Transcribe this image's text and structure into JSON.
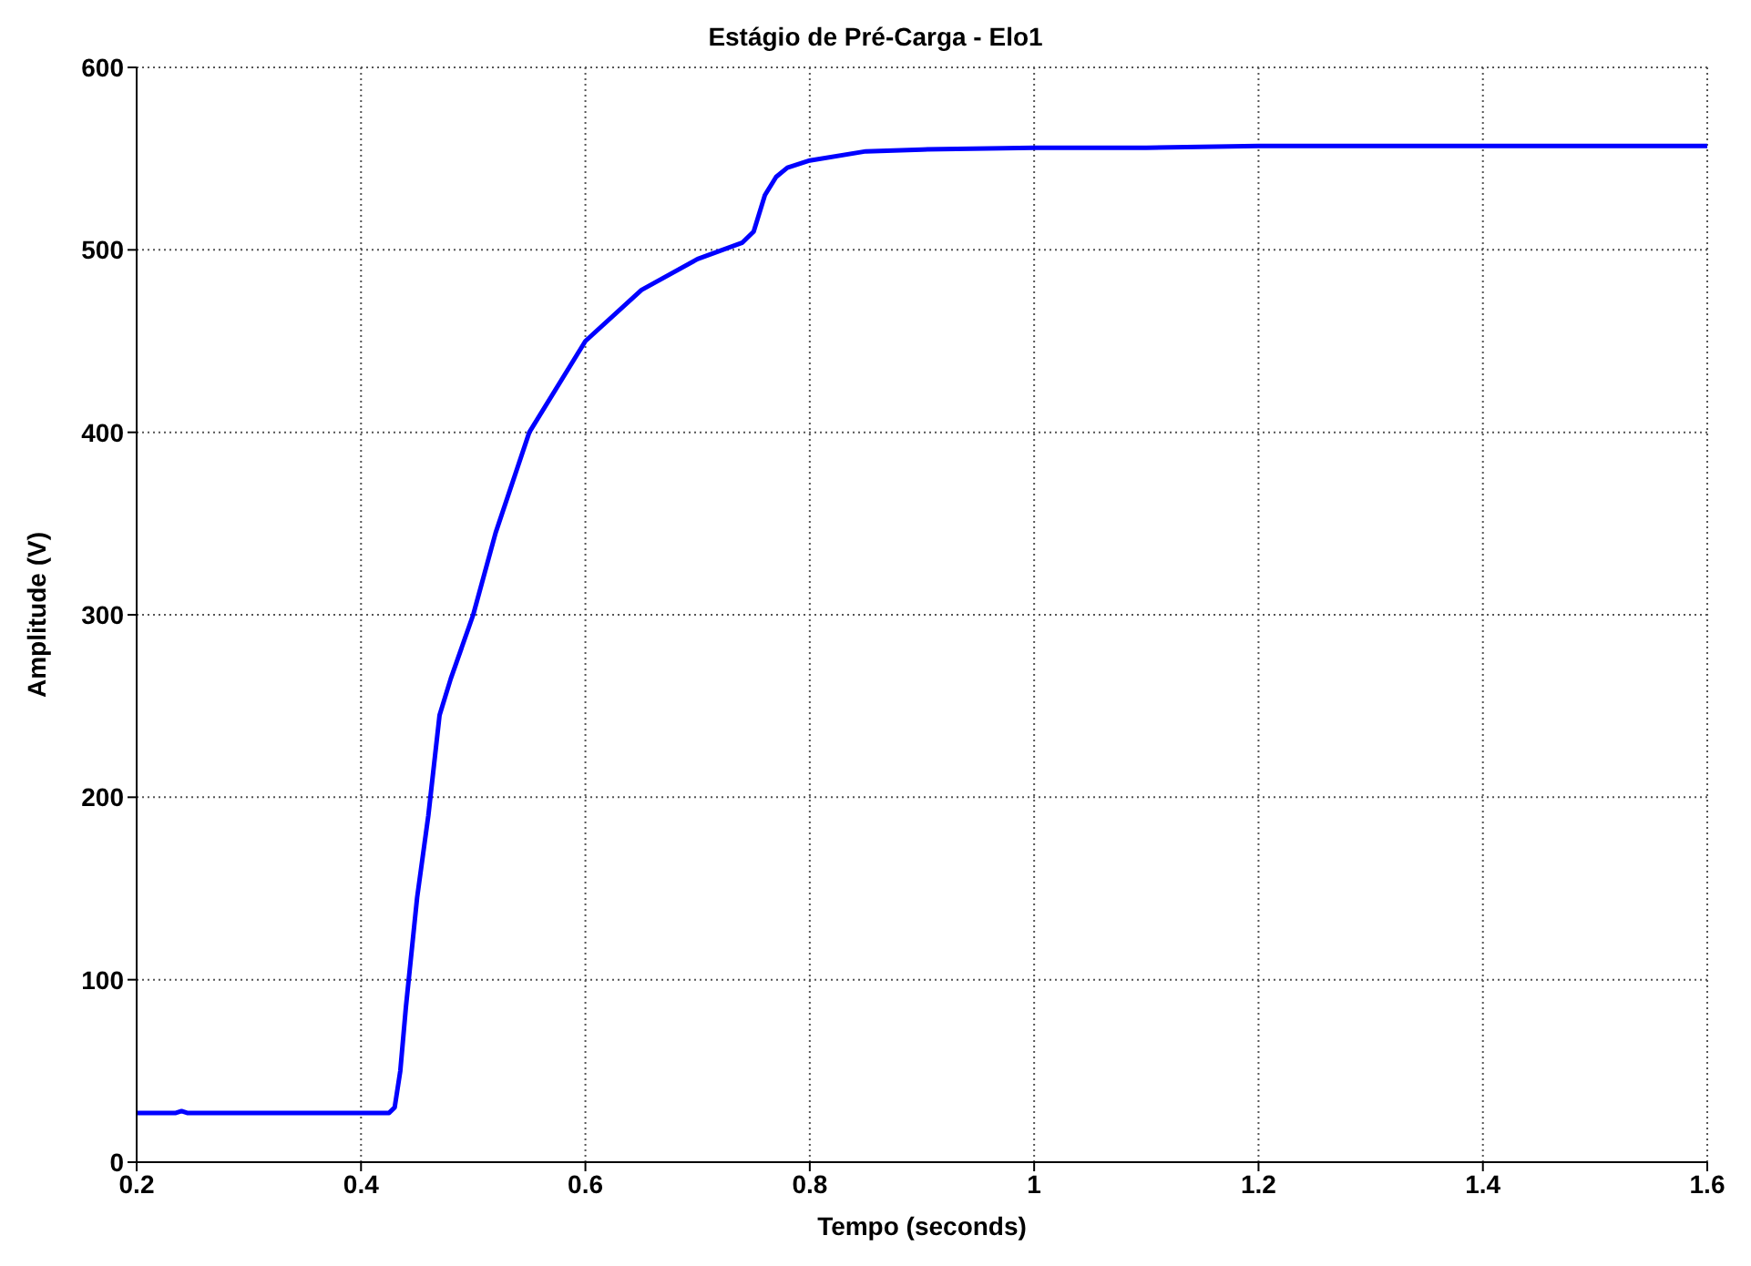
{
  "chart_data": {
    "type": "line",
    "title": "Estágio de Pré-Carga - Elo1",
    "xlabel": "Tempo (seconds)",
    "ylabel": "Amplitude (V)",
    "x": [
      0.2,
      0.235,
      0.24,
      0.245,
      0.3,
      0.35,
      0.4,
      0.425,
      0.43,
      0.435,
      0.44,
      0.45,
      0.46,
      0.47,
      0.48,
      0.5,
      0.52,
      0.55,
      0.6,
      0.65,
      0.7,
      0.74,
      0.75,
      0.76,
      0.77,
      0.78,
      0.8,
      0.85,
      0.9,
      1.0,
      1.1,
      1.2,
      1.5,
      1.6
    ],
    "series": [
      {
        "color": "#0000ff",
        "values": [
          27,
          27,
          28,
          27,
          27,
          27,
          27,
          27,
          30,
          50,
          85,
          145,
          190,
          245,
          265,
          300,
          345,
          400,
          450,
          478,
          495,
          504,
          510,
          530,
          540,
          545,
          549,
          554,
          555,
          556,
          556,
          557,
          557,
          557
        ]
      }
    ],
    "xlim": [
      0.2,
      1.6
    ],
    "ylim": [
      0,
      600
    ],
    "xticks": [
      0.2,
      0.4,
      0.6,
      0.8,
      1,
      1.2,
      1.4,
      1.6
    ],
    "yticks": [
      0,
      100,
      200,
      300,
      400,
      500,
      600
    ],
    "grid": true,
    "legend": false,
    "marker": "none",
    "line_style": "solid"
  }
}
